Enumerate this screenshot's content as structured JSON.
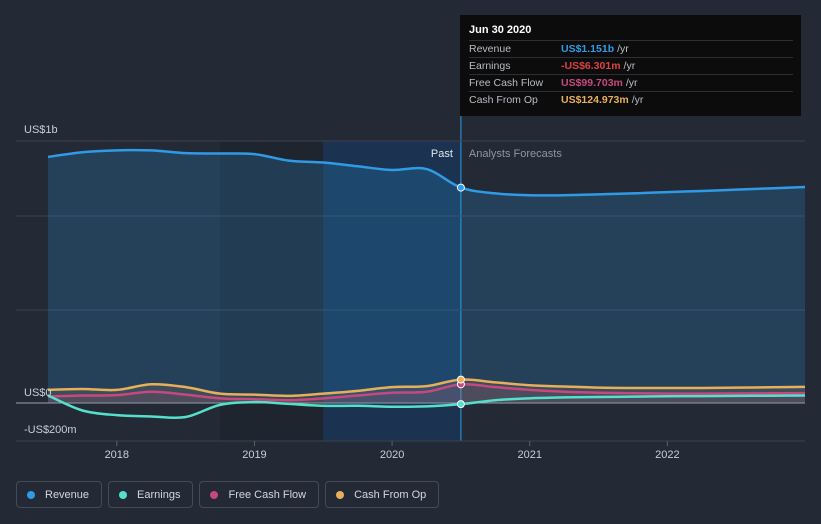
{
  "chart_data": {
    "type": "line",
    "x_ticks": [
      "2018",
      "2019",
      "2020",
      "2021",
      "2022"
    ],
    "y_labels": {
      "top": "US$1b",
      "zero": "US$0",
      "bottom": "-US$200m"
    },
    "ylim_millions": [
      -200,
      1400
    ],
    "divider_labels": {
      "past": "Past",
      "forecast": "Analysts Forecasts"
    },
    "grid": true,
    "series": [
      {
        "name": "Revenue",
        "color": "#2f9be6",
        "x": [
          2017.5,
          2017.75,
          2018.0,
          2018.25,
          2018.5,
          2018.75,
          2019.0,
          2019.25,
          2019.5,
          2019.75,
          2020.0,
          2020.25,
          2020.5,
          2020.75,
          2021.0,
          2021.25,
          2021.5,
          2021.75,
          2022.0,
          2022.25,
          2022.5,
          2022.75,
          2023.0
        ],
        "values": [
          1315,
          1340,
          1350,
          1350,
          1335,
          1333,
          1330,
          1295,
          1285,
          1265,
          1245,
          1250,
          1151,
          1120,
          1110,
          1110,
          1115,
          1120,
          1127,
          1133,
          1140,
          1147,
          1154
        ]
      },
      {
        "name": "Earnings",
        "color": "#55e0cb",
        "x": [
          2017.5,
          2017.75,
          2018.0,
          2018.25,
          2018.5,
          2018.75,
          2019.0,
          2019.25,
          2019.5,
          2019.75,
          2020.0,
          2020.25,
          2020.5,
          2020.75,
          2021.0,
          2021.25,
          2021.5,
          2021.75,
          2022.0,
          2022.25,
          2022.5,
          2022.75,
          2023.0
        ],
        "values": [
          40,
          -40,
          -65,
          -72,
          -75,
          -10,
          5,
          -5,
          -15,
          -15,
          -20,
          -18,
          -6,
          15,
          25,
          30,
          32,
          34,
          36,
          37,
          38,
          39,
          40
        ]
      },
      {
        "name": "Free Cash Flow",
        "color": "#c5497e",
        "x": [
          2017.5,
          2017.75,
          2018.0,
          2018.25,
          2018.5,
          2018.75,
          2019.0,
          2019.25,
          2019.5,
          2019.75,
          2020.0,
          2020.25,
          2020.5,
          2020.75,
          2021.0,
          2021.25,
          2021.5,
          2021.75,
          2022.0,
          2022.25,
          2022.5,
          2022.75,
          2023.0
        ],
        "values": [
          35,
          40,
          42,
          60,
          45,
          25,
          20,
          15,
          25,
          40,
          55,
          60,
          99.7,
          85,
          70,
          60,
          55,
          52,
          50,
          50,
          51,
          52,
          53
        ]
      },
      {
        "name": "Cash From Op",
        "color": "#e7ae5b",
        "x": [
          2017.5,
          2017.75,
          2018.0,
          2018.25,
          2018.5,
          2018.75,
          2019.0,
          2019.25,
          2019.5,
          2019.75,
          2020.0,
          2020.25,
          2020.5,
          2020.75,
          2021.0,
          2021.25,
          2021.5,
          2021.75,
          2022.0,
          2022.25,
          2022.5,
          2022.75,
          2023.0
        ],
        "values": [
          70,
          75,
          70,
          100,
          85,
          50,
          45,
          38,
          50,
          65,
          85,
          90,
          125,
          110,
          95,
          88,
          82,
          80,
          80,
          80,
          82,
          84,
          86
        ]
      }
    ],
    "highlight_x": 2020.5
  },
  "tooltip": {
    "date": "Jun 30 2020",
    "rows": [
      {
        "label": "Revenue",
        "value": "US$1.151b",
        "unit": "/yr",
        "color": "#2f9be6"
      },
      {
        "label": "Earnings",
        "value": "-US$6.301m",
        "unit": "/yr",
        "color": "#e0413f"
      },
      {
        "label": "Free Cash Flow",
        "value": "US$99.703m",
        "unit": "/yr",
        "color": "#c5497e"
      },
      {
        "label": "Cash From Op",
        "value": "US$124.973m",
        "unit": "/yr",
        "color": "#e7ae5b"
      }
    ]
  },
  "legend": [
    {
      "label": "Revenue",
      "color": "#2f9be6"
    },
    {
      "label": "Earnings",
      "color": "#55e0cb"
    },
    {
      "label": "Free Cash Flow",
      "color": "#c5497e"
    },
    {
      "label": "Cash From Op",
      "color": "#e7ae5b"
    }
  ]
}
